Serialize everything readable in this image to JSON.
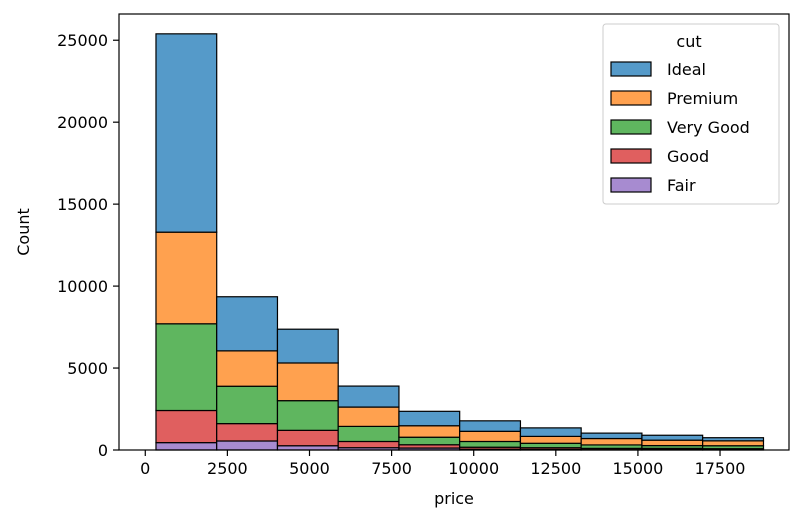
{
  "chart_data": {
    "type": "bar",
    "stacked": true,
    "xlabel": "price",
    "ylabel": "Count",
    "xlim": [
      -800,
      19600
    ],
    "ylim": [
      0,
      26600
    ],
    "x_ticks": [
      0,
      2500,
      5000,
      7500,
      10000,
      12500,
      15000,
      17500
    ],
    "y_ticks": [
      0,
      5000,
      10000,
      15000,
      20000,
      25000
    ],
    "grid": false,
    "bins": [
      [
        326,
        2175
      ],
      [
        2175,
        4025
      ],
      [
        4025,
        5874
      ],
      [
        5874,
        7724
      ],
      [
        7724,
        9573
      ],
      [
        9573,
        11423
      ],
      [
        11423,
        13272
      ],
      [
        13272,
        15122
      ],
      [
        15122,
        16971
      ],
      [
        16971,
        18823
      ]
    ],
    "series": [
      {
        "name": "Fair",
        "color": "#a78bd0",
        "values": [
          450,
          550,
          260,
          140,
          120,
          50,
          40,
          20,
          30,
          20
        ]
      },
      {
        "name": "Good",
        "color": "#e05f5f",
        "values": [
          1960,
          1060,
          940,
          380,
          200,
          120,
          100,
          80,
          70,
          60
        ]
      },
      {
        "name": "Very Good",
        "color": "#5fb65f",
        "values": [
          5290,
          2280,
          1810,
          920,
          460,
          350,
          270,
          210,
          170,
          180
        ]
      },
      {
        "name": "Premium",
        "color": "#ffa14f",
        "values": [
          5590,
          2160,
          2300,
          1180,
          700,
          620,
          420,
          390,
          330,
          300
        ]
      },
      {
        "name": "Ideal",
        "color": "#559ac9",
        "values": [
          12100,
          3300,
          2060,
          1280,
          880,
          640,
          520,
          330,
          300,
          190
        ]
      }
    ],
    "legend": {
      "title": "cut",
      "position": "top-right",
      "entries": [
        "Ideal",
        "Premium",
        "Very Good",
        "Good",
        "Fair"
      ]
    }
  }
}
